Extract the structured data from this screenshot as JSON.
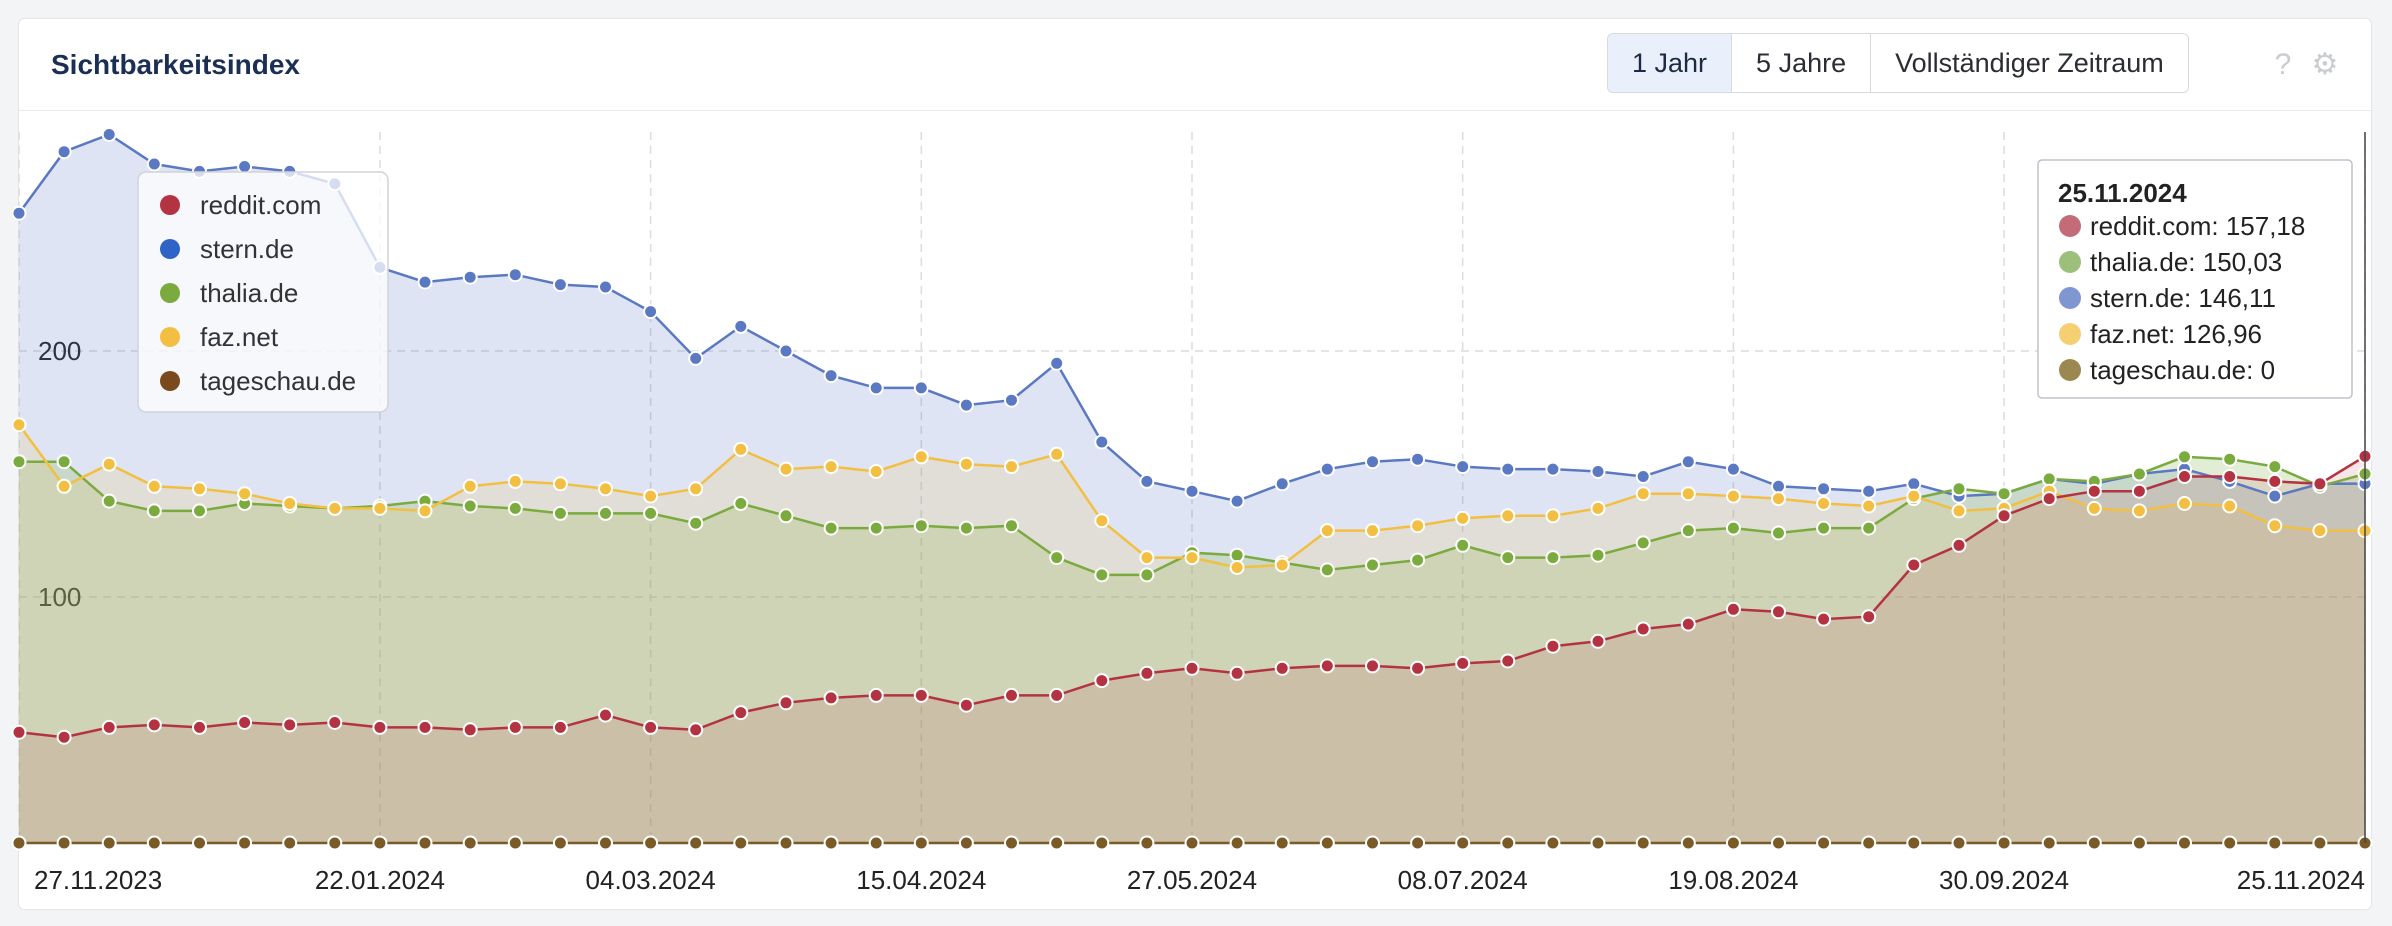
{
  "header": {
    "title": "Sichtbarkeitsindex",
    "range_buttons": [
      "1 Jahr",
      "5 Jahre",
      "Vollständiger Zeitraum"
    ],
    "active_range": "1 Jahr",
    "help_icon": "question-icon",
    "settings_icon": "gear-icon"
  },
  "chart_data": {
    "type": "area",
    "x_tick_labels": [
      "27.11.2023",
      "22.01.2024",
      "04.03.2024",
      "15.04.2024",
      "27.05.2024",
      "08.07.2024",
      "19.08.2024",
      "30.09.2024",
      "25.11.2024"
    ],
    "y_tick_labels": [
      "100",
      "200"
    ],
    "ylim": [
      0,
      300
    ],
    "grid": true,
    "legend_position": "top-left",
    "series": [
      {
        "name": "stern.de",
        "color": "#5b78c3",
        "values": [
          256,
          281,
          288,
          276,
          273,
          275,
          273,
          268,
          234,
          228,
          230,
          231,
          227,
          226,
          216,
          197,
          210,
          200,
          190,
          185,
          185,
          178,
          180,
          195,
          163,
          147,
          143,
          139,
          146,
          152,
          155,
          156,
          153,
          152,
          152,
          151,
          149,
          155,
          152,
          145,
          144,
          143,
          146,
          141,
          142,
          148,
          146,
          150,
          152,
          147,
          141,
          146,
          146.11
        ]
      },
      {
        "name": "thalia.de",
        "color": "#7bab3f",
        "values": [
          155,
          155,
          139,
          135,
          135,
          138,
          137,
          136,
          137,
          139,
          137,
          136,
          134,
          134,
          134,
          130,
          138,
          133,
          128,
          128,
          129,
          128,
          129,
          116,
          109,
          109,
          118,
          117,
          114,
          111,
          113,
          115,
          121,
          116,
          116,
          117,
          122,
          127,
          128,
          126,
          128,
          128,
          140,
          144,
          142,
          148,
          147,
          150,
          157,
          156,
          153,
          145,
          150.03
        ]
      },
      {
        "name": "faz.net",
        "color": "#f3bf42",
        "values": [
          170,
          145,
          154,
          145,
          144,
          142,
          138,
          136,
          136,
          135,
          145,
          147,
          146,
          144,
          141,
          144,
          160,
          152,
          153,
          151,
          157,
          154,
          153,
          158,
          131,
          116,
          116,
          112,
          113,
          127,
          127,
          129,
          132,
          133,
          133,
          136,
          142,
          142,
          141,
          140,
          138,
          137,
          141,
          135,
          136,
          143,
          136,
          135,
          138,
          137,
          129,
          127,
          126.96
        ]
      },
      {
        "name": "reddit.com",
        "color": "#b43343",
        "values": [
          45,
          43,
          47,
          48,
          47,
          49,
          48,
          49,
          47,
          47,
          46,
          47,
          47,
          52,
          47,
          46,
          53,
          57,
          59,
          60,
          60,
          56,
          60,
          60,
          66,
          69,
          71,
          69,
          71,
          72,
          72,
          71,
          73,
          74,
          80,
          82,
          87,
          89,
          95,
          94,
          91,
          92,
          113,
          121,
          133,
          140,
          143,
          143,
          149,
          149,
          147,
          146,
          157.18
        ]
      },
      {
        "name": "tageschau.de",
        "color": "#7a5a26",
        "values": [
          0,
          0,
          0,
          0,
          0,
          0,
          0,
          0,
          0,
          0,
          0,
          0,
          0,
          0,
          0,
          0,
          0,
          0,
          0,
          0,
          0,
          0,
          0,
          0,
          0,
          0,
          0,
          0,
          0,
          0,
          0,
          0,
          0,
          0,
          0,
          0,
          0,
          0,
          0,
          0,
          0,
          0,
          0,
          0,
          0,
          0,
          0,
          0,
          0,
          0,
          0,
          0,
          0
        ]
      }
    ]
  },
  "legend": [
    {
      "label": "reddit.com",
      "color": "#b43343"
    },
    {
      "label": "stern.de",
      "color": "#2f63c6"
    },
    {
      "label": "thalia.de",
      "color": "#7bab3f"
    },
    {
      "label": "faz.net",
      "color": "#f3bf42"
    },
    {
      "label": "tageschau.de",
      "color": "#7a4a1e"
    }
  ],
  "tooltip": {
    "date": "25.11.2024",
    "rows": [
      {
        "text": "reddit.com: 157,18",
        "color": "#c46b78"
      },
      {
        "text": "thalia.de: 150,03",
        "color": "#9cc07a"
      },
      {
        "text": "stern.de: 146,11",
        "color": "#7f97d0"
      },
      {
        "text": "faz.net: 126,96",
        "color": "#f5d073"
      },
      {
        "text": "tageschau.de: 0",
        "color": "#9c8750"
      }
    ]
  }
}
